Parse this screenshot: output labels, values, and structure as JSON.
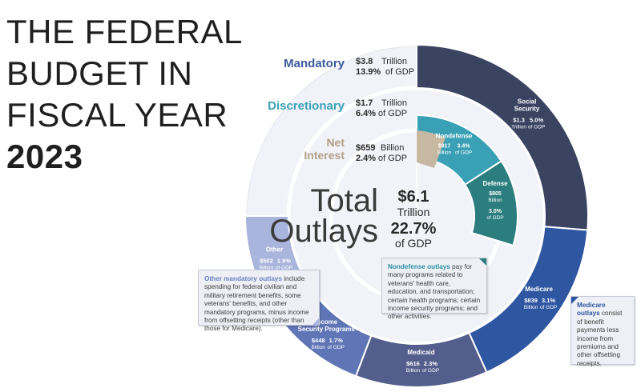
{
  "title": {
    "line1": "THE FEDERAL",
    "line2": "BUDGET IN",
    "line3": "FISCAL YEAR",
    "line4": "2023"
  },
  "groups": {
    "mandatory": {
      "label": "Mandatory",
      "amount": "$3.8",
      "unit": "Trillion",
      "pct": "13.9%",
      "pct_suffix": "of GDP",
      "color": "#3b5a9e"
    },
    "discretionary": {
      "label": "Discretionary",
      "amount": "$1.7",
      "unit": "Trillion",
      "pct": "6.4%",
      "pct_suffix": "of GDP",
      "color": "#3aa0b5"
    },
    "net_interest": {
      "label_1": "Net",
      "label_2": "Interest",
      "amount": "$659",
      "unit": "Billion",
      "pct": "2.4%",
      "pct_suffix": "of GDP",
      "color": "#b29f86"
    }
  },
  "total": {
    "label_1": "Total",
    "label_2": "Outlays",
    "amount": "$6.1",
    "unit": "Trillion",
    "pct": "22.7%",
    "pct_suffix": "of GDP"
  },
  "chart_data": {
    "type": "pie",
    "title": "THE FEDERAL BUDGET IN FISCAL YEAR 2023",
    "unit": "billions of dollars",
    "inner_ring": [
      {
        "name": "Nondefense",
        "amount": "$917",
        "amount_unit": "Billion",
        "pct": "3.4%",
        "pct_suffix": "of GDP",
        "value": 917,
        "color": "#3aa0b5"
      },
      {
        "name": "Defense",
        "amount": "$805",
        "amount_unit": "Billion",
        "pct": "3.0%",
        "pct_suffix": "of GDP",
        "value": 805,
        "color": "#2b7d7e"
      },
      {
        "name": "Net Interest",
        "amount": "$659",
        "amount_unit": "Billion",
        "pct": "2.4%",
        "pct_suffix": "of GDP",
        "value": 659,
        "color": "#c6b8a2"
      }
    ],
    "outer_ring": [
      {
        "name_1": "Social",
        "name_2": "Security",
        "amount": "$1.3",
        "amount_unit": "Trillion",
        "pct": "5.0%",
        "pct_suffix": "of GDP",
        "value": 1300,
        "color": "#3a4461"
      },
      {
        "name_1": "Medicare",
        "name_2": "",
        "amount": "$839",
        "amount_unit": "Billion",
        "pct": "3.1%",
        "pct_suffix": "of GDP",
        "value": 839,
        "color": "#2f56a1"
      },
      {
        "name_1": "Medicaid",
        "name_2": "",
        "amount": "$616",
        "amount_unit": "Billion",
        "pct": "2.3%",
        "pct_suffix": "of GDP",
        "value": 616,
        "color": "#545e8d"
      },
      {
        "name_1": "Income",
        "name_2": "Security Programs",
        "amount": "$448",
        "amount_unit": "Billion",
        "pct": "1.7%",
        "pct_suffix": "of GDP",
        "value": 448,
        "color": "#6075b6"
      },
      {
        "name_1": "Other",
        "name_2": "",
        "amount": "$502",
        "amount_unit": "Billion",
        "pct": "1.9%",
        "pct_suffix": "of GDP",
        "value": 502,
        "color": "#a9b5dd"
      }
    ]
  },
  "notes": {
    "other": {
      "bold": "Other mandatory outlays",
      "text": " include spending for federal civilian and military retirement benefits, some veterans' benefits, and other mandatory programs, minus income from offsetting receipts (other than those for Medicare)."
    },
    "nondefense": {
      "bold": "Nondefense outlays",
      "text": " pay for many programs related to veterans' health care, education, and transportation; certain health programs; certain income security programs; and other activities."
    },
    "medicare": {
      "bold": "Medicare outlays",
      "text": " consist of benefit payments less income from premiums and other offsetting receipts."
    }
  }
}
